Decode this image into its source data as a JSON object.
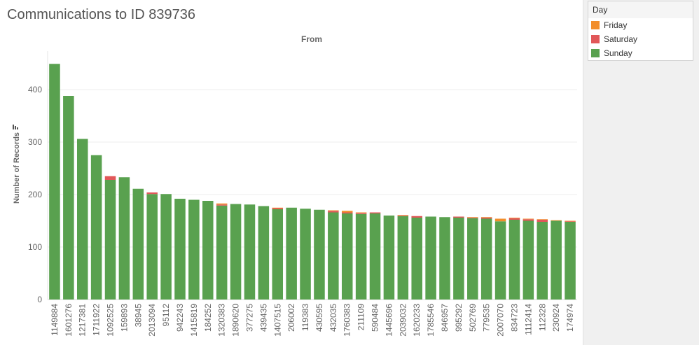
{
  "title": "Communications to ID 839736",
  "legend": {
    "title": "Day",
    "items": [
      {
        "label": "Friday",
        "color": "#F28E2B"
      },
      {
        "label": "Saturday",
        "color": "#E15759"
      },
      {
        "label": "Sunday",
        "color": "#59A14F"
      }
    ]
  },
  "chart_data": {
    "type": "bar",
    "stacked": true,
    "title": "Communications to ID 839736",
    "column_header": "From",
    "ylabel": "Number of Records",
    "ylim": [
      0,
      460
    ],
    "yticks": [
      0,
      100,
      200,
      300,
      400
    ],
    "grid": true,
    "legend_position": "top-right",
    "categories": [
      "1149884",
      "1601276",
      "1217381",
      "1711922",
      "1092525",
      "159893",
      "38945",
      "2013094",
      "95112",
      "942243",
      "1415819",
      "184252",
      "1320383",
      "1890620",
      "377275",
      "439435",
      "1407515",
      "206002",
      "119383",
      "430595",
      "432035",
      "1760383",
      "211109",
      "590484",
      "1445696",
      "2039032",
      "1620233",
      "1785546",
      "846957",
      "995292",
      "502769",
      "779535",
      "2007070",
      "834723",
      "1112414",
      "112328",
      "230924",
      "174974"
    ],
    "series": [
      {
        "name": "Sunday",
        "color": "#59A14F",
        "values": [
          449,
          388,
          306,
          275,
          228,
          233,
          211,
          201,
          201,
          192,
          190,
          188,
          179,
          182,
          181,
          178,
          172,
          175,
          173,
          171,
          166,
          164,
          163,
          164,
          160,
          159,
          156,
          158,
          157,
          156,
          155,
          154,
          149,
          152,
          150,
          148,
          150,
          148
        ]
      },
      {
        "name": "Saturday",
        "color": "#E15759",
        "values": [
          0,
          0,
          0,
          0,
          7,
          0,
          0,
          3,
          0,
          0,
          0,
          0,
          2,
          0,
          0,
          0,
          2,
          0,
          0,
          0,
          3,
          2,
          2,
          2,
          0,
          1,
          3,
          0,
          0,
          2,
          1,
          2,
          0,
          3,
          3,
          4,
          0,
          1
        ]
      },
      {
        "name": "Friday",
        "color": "#F28E2B",
        "values": [
          0,
          0,
          0,
          0,
          0,
          0,
          0,
          0,
          0,
          0,
          0,
          0,
          2,
          0,
          0,
          0,
          1,
          0,
          0,
          0,
          1,
          3,
          1,
          0,
          0,
          1,
          0,
          0,
          0,
          0,
          1,
          1,
          5,
          1,
          1,
          1,
          1,
          1
        ]
      }
    ]
  }
}
